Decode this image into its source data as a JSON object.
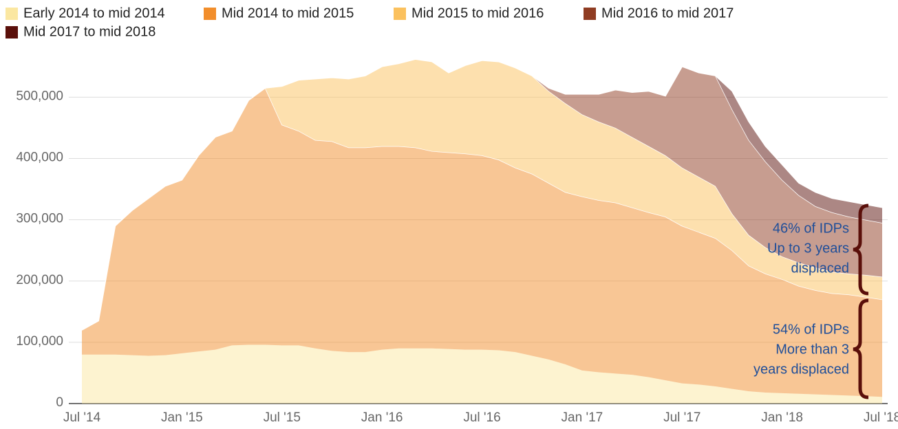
{
  "chart_data": {
    "type": "stacked-area",
    "categories": [
      "Jul '14",
      null,
      null,
      null,
      null,
      null,
      "Jan '15",
      null,
      null,
      null,
      null,
      null,
      "Jul '15",
      null,
      null,
      null,
      null,
      null,
      "Jan '16",
      null,
      null,
      null,
      null,
      null,
      "Jul '16",
      null,
      null,
      null,
      null,
      null,
      "Jan '17",
      null,
      null,
      null,
      null,
      null,
      "Jul '17",
      null,
      null,
      null,
      null,
      null,
      "Jan '18",
      null,
      null,
      null,
      null,
      null,
      "Jul '18"
    ],
    "series": [
      {
        "name": "Early 2014 to mid 2014",
        "color": "#fbe7a1",
        "values": [
          80000,
          80000,
          80000,
          79000,
          78000,
          79000,
          82000,
          85000,
          88000,
          95000,
          96000,
          96000,
          95000,
          95000,
          90000,
          86000,
          84000,
          84000,
          88000,
          90000,
          90000,
          90000,
          89000,
          88000,
          88000,
          87000,
          84000,
          78000,
          72000,
          64000,
          54000,
          51000,
          49000,
          47000,
          43000,
          38000,
          33000,
          31000,
          28000,
          24000,
          20000,
          18000,
          17000,
          16000,
          15000,
          14000,
          13000,
          12000,
          11000
        ]
      },
      {
        "name": "Mid 2014 to mid 2015",
        "color": "#f28e2b",
        "values": [
          40000,
          55000,
          210000,
          236000,
          257000,
          276000,
          283000,
          320000,
          347000,
          350000,
          399000,
          419000,
          360000,
          350000,
          340000,
          342000,
          334000,
          334000,
          332000,
          330000,
          328000,
          322000,
          321000,
          320000,
          317000,
          311000,
          301000,
          297000,
          288000,
          281000,
          284000,
          281000,
          279000,
          273000,
          269000,
          267000,
          257000,
          249000,
          242000,
          226000,
          205000,
          194000,
          186000,
          176000,
          170000,
          166000,
          165000,
          162000,
          159000
        ]
      },
      {
        "name": "Mid 2015 to mid 2016",
        "color": "#fbc15e",
        "values": [
          null,
          null,
          null,
          null,
          null,
          null,
          null,
          null,
          null,
          null,
          null,
          0,
          63000,
          83000,
          100000,
          104000,
          112000,
          117000,
          130000,
          135000,
          144000,
          146000,
          130000,
          144000,
          155000,
          160000,
          163000,
          160000,
          150000,
          145000,
          134000,
          128000,
          122000,
          115000,
          108000,
          100000,
          95000,
          90000,
          85000,
          60000,
          50000,
          43000,
          37000,
          38000,
          37000,
          35000,
          34000,
          36000,
          37000
        ]
      },
      {
        "name": "Mid 2016 to mid 2017",
        "color": "#8f3c22",
        "values": [
          null,
          null,
          null,
          null,
          null,
          null,
          null,
          null,
          null,
          null,
          null,
          null,
          null,
          null,
          null,
          null,
          null,
          null,
          null,
          null,
          null,
          null,
          null,
          null,
          null,
          null,
          null,
          0,
          5000,
          15000,
          33000,
          45000,
          62000,
          73000,
          90000,
          97000,
          165000,
          170000,
          180000,
          170000,
          155000,
          140000,
          125000,
          110000,
          100000,
          97000,
          93000,
          90000,
          88000
        ]
      },
      {
        "name": "Mid 2017 to mid 2018",
        "color": "#5a0f0a",
        "values": [
          null,
          null,
          null,
          null,
          null,
          null,
          null,
          null,
          null,
          null,
          null,
          null,
          null,
          null,
          null,
          null,
          null,
          null,
          null,
          null,
          null,
          null,
          null,
          null,
          null,
          null,
          null,
          null,
          null,
          null,
          null,
          null,
          null,
          null,
          null,
          null,
          null,
          null,
          0,
          30000,
          30000,
          25000,
          25000,
          20000,
          23000,
          23000,
          25000,
          25000,
          25000
        ]
      }
    ],
    "ylim": [
      0,
      570000
    ],
    "yticks": [
      0,
      {
        "value": 100000,
        "label": "100,000"
      },
      {
        "value": 200000,
        "label": "200,000"
      },
      {
        "value": 300000,
        "label": "300,000"
      },
      {
        "value": 400000,
        "label": "400,000"
      },
      {
        "value": 500000,
        "label": "500,000"
      }
    ],
    "grid": true,
    "annotations": [
      {
        "lines": [
          "46% of IDPs",
          "Up to 3 years",
          "displaced"
        ]
      },
      {
        "lines": [
          "54% of IDPs",
          "More than 3",
          "years displaced"
        ]
      }
    ]
  }
}
